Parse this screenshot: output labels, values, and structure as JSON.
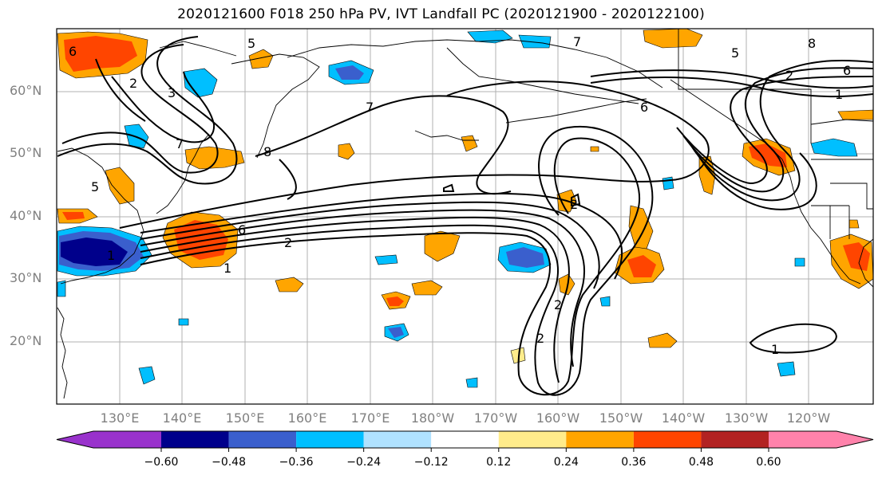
{
  "title": "2020121600 F018 250 hPa PV, IVT Landfall PC (2020121900 - 2020122100)",
  "latitude_labels": [
    "60°N",
    "50°N",
    "40°N",
    "30°N",
    "20°N"
  ],
  "longitude_labels": [
    "130°E",
    "140°E",
    "150°E",
    "160°E",
    "170°E",
    "180°W",
    "170°W",
    "160°W",
    "150°W",
    "140°W",
    "130°W",
    "120°W"
  ],
  "contour_labels": [
    "1",
    "2",
    "3",
    "5",
    "6",
    "7",
    "8",
    "2",
    "6",
    "2",
    "1",
    "2",
    "2",
    "1",
    "6",
    "7",
    "5",
    "2",
    "6",
    "1",
    "8",
    "7",
    "5"
  ],
  "colorbar": {
    "ticks": [
      "−0.60",
      "−0.48",
      "−0.36",
      "−0.24",
      "−0.12",
      "0.12",
      "0.24",
      "0.36",
      "0.48",
      "0.60"
    ],
    "colors": [
      "#9932cc",
      "#00008b",
      "#3a5fcd",
      "#00bfff",
      "#b0e2ff",
      "#ffffff",
      "#ffec8b",
      "#ffa500",
      "#ff4500",
      "#b22222",
      "#ff82ab"
    ]
  },
  "map_colors": {
    "grid": "#b0b0b0",
    "contour": "#000000",
    "coast": "#000000"
  }
}
